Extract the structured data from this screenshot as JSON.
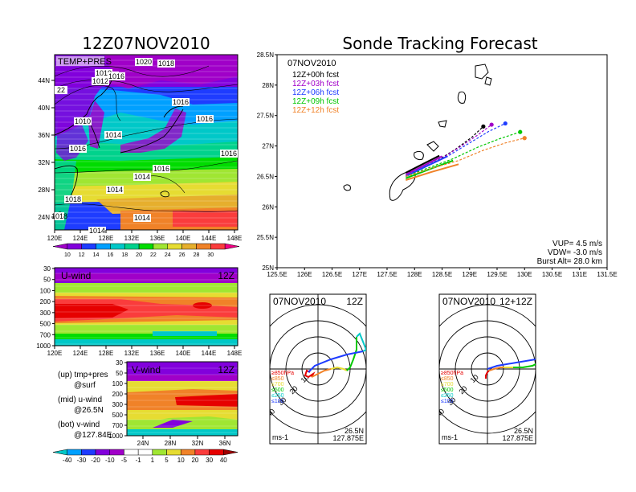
{
  "left": {
    "title": "12Z07NOV2010",
    "map": {
      "label": "TEMP+PRES",
      "x_ticks": [
        "120E",
        "124E",
        "128E",
        "132E",
        "136E",
        "140E",
        "144E",
        "148E"
      ],
      "y_ticks": [
        "44N",
        "40N",
        "36N",
        "32N",
        "28N",
        "24N"
      ],
      "isobar_labels": [
        "1020",
        "1018",
        "1016",
        "1012",
        "1010",
        "1016",
        "1016",
        "22",
        "1010",
        "1014",
        "1016",
        "1016",
        "1016",
        "1014",
        "1016",
        "1018",
        "1014",
        "1014",
        "1018",
        "1014"
      ],
      "colorbar": [
        "10",
        "12",
        "14",
        "16",
        "18",
        "20",
        "22",
        "24",
        "26",
        "28",
        "30"
      ],
      "colorbar_colors": [
        "#a000c8",
        "#8200dc",
        "#1e3cff",
        "#00a0ff",
        "#00c8c8",
        "#00d28c",
        "#00dc00",
        "#a0e632",
        "#e6dc32",
        "#e6af2d",
        "#f08228",
        "#fa3c3c",
        "#f00082"
      ]
    },
    "u_panel": {
      "label": "U-wind",
      "time": "12Z",
      "y_ticks": [
        "30",
        "50",
        "100",
        "200",
        "300",
        "500",
        "700",
        "1000"
      ],
      "x_ticks": [
        "120E",
        "124E",
        "128E",
        "132E",
        "136E",
        "140E",
        "144E",
        "148E"
      ]
    },
    "v_panel": {
      "label": "V-wind",
      "time": "12Z",
      "y_ticks": [
        "30",
        "50",
        "100",
        "200",
        "300",
        "500",
        "700",
        "1000"
      ],
      "x_ticks": [
        "24N",
        "28N",
        "32N",
        "36N"
      ]
    },
    "notes": [
      {
        "a": "(up) tmp+pres",
        "b": "@surf"
      },
      {
        "a": "(mid) u-wind",
        "b": "@26.5N"
      },
      {
        "a": "(bot) v-wind",
        "b": "@127.84E"
      }
    ],
    "wind_colorbar": [
      "-40",
      "-30",
      "-20",
      "-10",
      "-5",
      "-1",
      "1",
      "5",
      "10",
      "20",
      "30",
      "40"
    ],
    "wind_colorbar_colors": [
      "#00c8c8",
      "#00a0ff",
      "#1e3cff",
      "#8200dc",
      "#a000c8",
      "#ffffff",
      "#ffffff",
      "#a0e632",
      "#e6dc32",
      "#f08228",
      "#fa3c3c",
      "#e60000",
      "#a00000"
    ]
  },
  "track": {
    "title": "Sonde Tracking Forecast",
    "date": "07NOV2010",
    "legend": [
      {
        "label": "12Z+00h  fcst",
        "color": "#000000"
      },
      {
        "label": "12Z+03h  fcst",
        "color": "#a000c8"
      },
      {
        "label": "12Z+06h  fcst",
        "color": "#1e3cff"
      },
      {
        "label": "12Z+09h  fcst",
        "color": "#00c800"
      },
      {
        "label": "12Z+12h  fcst",
        "color": "#f08228"
      }
    ],
    "x_ticks": [
      "125.5E",
      "126E",
      "126.5E",
      "127E",
      "127.5E",
      "128E",
      "128.5E",
      "129E",
      "129.5E",
      "130E",
      "130.5E",
      "131E",
      "131.5E"
    ],
    "y_ticks": [
      "28.5N",
      "28N",
      "27.5N",
      "27N",
      "26.5N",
      "26N",
      "25.5N",
      "25N"
    ],
    "stats": [
      "VUP=  4.5  m/s",
      "VDW= -3.0  m/s",
      "Burst Alt=  28.0  km"
    ]
  },
  "chart_data": [
    {
      "type": "line",
      "title": "Sonde Tracking Forecast",
      "xlabel": "",
      "ylabel": "",
      "xlim": [
        125.5,
        131.5
      ],
      "ylim": [
        25,
        28.5
      ],
      "series": [
        {
          "name": "12Z+00h  fcst",
          "color": "#000000",
          "x": [
            127.84,
            128.1,
            128.45,
            128.75,
            129.05,
            129.25
          ],
          "y": [
            26.5,
            26.62,
            26.78,
            26.95,
            27.15,
            27.32
          ]
        },
        {
          "name": "12Z+03h  fcst",
          "color": "#a000c8",
          "x": [
            127.84,
            128.15,
            128.5,
            128.85,
            129.15,
            129.4
          ],
          "y": [
            26.5,
            26.64,
            26.8,
            27.0,
            27.18,
            27.35
          ]
        },
        {
          "name": "12Z+06h  fcst",
          "color": "#1e3cff",
          "x": [
            127.84,
            128.2,
            128.6,
            129.0,
            129.35,
            129.65
          ],
          "y": [
            26.5,
            26.66,
            26.83,
            27.05,
            27.24,
            27.37
          ]
        },
        {
          "name": "12Z+09h  fcst",
          "color": "#00c800",
          "x": [
            127.84,
            128.25,
            128.7,
            129.15,
            129.55,
            129.92
          ],
          "y": [
            26.5,
            26.64,
            26.79,
            26.98,
            27.12,
            27.23
          ]
        },
        {
          "name": "12Z+12h  fcst",
          "color": "#f08228",
          "x": [
            127.84,
            128.3,
            128.8,
            129.25,
            129.65,
            130.0
          ],
          "y": [
            26.5,
            26.63,
            26.76,
            26.93,
            27.05,
            27.13
          ]
        }
      ]
    },
    {
      "type": "hodograph",
      "title": "07NOV2010",
      "time": "12Z",
      "ring_labels": [
        "10",
        "20",
        "30",
        "40"
      ],
      "levels": [
        {
          "label": "≥850hPa",
          "color": "#e60000"
        },
        {
          "label": "≤850",
          "color": "#f08228"
        },
        {
          "label": "≤700",
          "color": "#e6dc32"
        },
        {
          "label": "≤500",
          "color": "#00c800"
        },
        {
          "label": "≤250",
          "color": "#00c8c8"
        },
        {
          "label": "≤100",
          "color": "#1e3cff"
        }
      ],
      "location": [
        "26.5N",
        "127.875E"
      ],
      "units": "ms-1",
      "segments": [
        {
          "color": "#e60000",
          "u": [
            -5,
            -7,
            -8,
            -6,
            -3,
            -4
          ],
          "v": [
            -2,
            -1,
            -4,
            -5,
            -3,
            -5
          ]
        },
        {
          "color": "#f08228",
          "u": [
            -4,
            0,
            4,
            8
          ],
          "v": [
            -5,
            -3,
            -1,
            0
          ]
        },
        {
          "color": "#e6dc32",
          "u": [
            8,
            12,
            16,
            18
          ],
          "v": [
            0,
            1,
            0,
            -1
          ]
        },
        {
          "color": "#00c800",
          "u": [
            18,
            20,
            22,
            24,
            24
          ],
          "v": [
            -1,
            1,
            6,
            12,
            20
          ]
        },
        {
          "color": "#00c8c8",
          "u": [
            24,
            26,
            30,
            28
          ],
          "v": [
            20,
            22,
            12,
            11
          ]
        },
        {
          "color": "#1e3cff",
          "u": [
            28,
            18,
            8,
            -2,
            -6
          ],
          "v": [
            11,
            9,
            6,
            2,
            -2
          ]
        }
      ]
    },
    {
      "type": "hodograph",
      "title": "07NOV2010",
      "time": "12+12Z",
      "ring_labels": [
        "10",
        "20",
        "30",
        "40"
      ],
      "levels": [
        {
          "label": "≥850hPa",
          "color": "#e60000"
        },
        {
          "label": "≤850",
          "color": "#f08228"
        },
        {
          "label": "≤700",
          "color": "#e6dc32"
        },
        {
          "label": "≤500",
          "color": "#00c800"
        },
        {
          "label": "≤250",
          "color": "#00c8c8"
        },
        {
          "label": "≤100",
          "color": "#1e3cff"
        }
      ],
      "location": [
        "26.5N",
        "127.875E"
      ],
      "units": "ms-1",
      "segments": [
        {
          "color": "#e60000",
          "u": [
            -1,
            -1,
            0,
            1
          ],
          "v": [
            -6,
            -4,
            -2,
            -1
          ]
        },
        {
          "color": "#f08228",
          "u": [
            1,
            4,
            8,
            10
          ],
          "v": [
            -1,
            0,
            1,
            1
          ]
        },
        {
          "color": "#e6dc32",
          "u": [
            10,
            13,
            16
          ],
          "v": [
            1,
            1,
            1
          ]
        },
        {
          "color": "#00c800",
          "u": [
            16,
            22,
            28,
            32,
            36
          ],
          "v": [
            1,
            1,
            2,
            4,
            6
          ]
        },
        {
          "color": "#00c8c8",
          "u": [
            36,
            38,
            40,
            41
          ],
          "v": [
            6,
            10,
            12,
            9
          ]
        },
        {
          "color": "#1e3cff",
          "u": [
            41,
            30,
            18,
            6,
            0
          ],
          "v": [
            9,
            6,
            4,
            2,
            0
          ]
        }
      ]
    }
  ]
}
